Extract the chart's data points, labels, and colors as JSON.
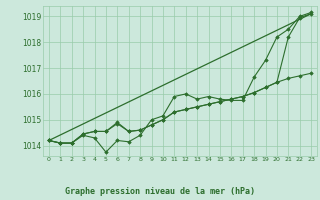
{
  "title": "Graphe pression niveau de la mer (hPa)",
  "bg_color": "#cce8dc",
  "grid_color": "#99ccaa",
  "line_color": "#2d6e2d",
  "marker_color": "#2d6e2d",
  "ylim": [
    1013.6,
    1019.4
  ],
  "xlim": [
    -0.5,
    23.5
  ],
  "yticks": [
    1014,
    1015,
    1016,
    1017,
    1018,
    1019
  ],
  "xticks": [
    0,
    1,
    2,
    3,
    4,
    5,
    6,
    7,
    8,
    9,
    10,
    11,
    12,
    13,
    14,
    15,
    16,
    17,
    18,
    19,
    20,
    21,
    22,
    23
  ],
  "series1": [
    1014.2,
    1014.1,
    1014.1,
    1014.4,
    1014.3,
    1013.75,
    1014.2,
    1014.15,
    1014.4,
    1015.0,
    1015.15,
    1015.9,
    1016.0,
    1015.8,
    1015.9,
    1015.8,
    1015.75,
    1015.75,
    1016.65,
    1017.3,
    1018.2,
    1018.5,
    1019.0,
    1019.15
  ],
  "series2": [
    1014.2,
    1014.1,
    1014.1,
    1014.45,
    1014.55,
    1014.55,
    1014.85,
    1014.55,
    1014.6,
    1014.8,
    1015.0,
    1015.3,
    1015.4,
    1015.5,
    1015.6,
    1015.7,
    1015.8,
    1015.9,
    1016.05,
    1016.25,
    1016.45,
    1016.6,
    1016.7,
    1016.8
  ],
  "series3": [
    1014.2,
    1014.1,
    1014.1,
    1014.45,
    1014.55,
    1014.55,
    1014.9,
    1014.55,
    1014.6,
    1014.8,
    1015.0,
    1015.3,
    1015.4,
    1015.5,
    1015.6,
    1015.7,
    1015.8,
    1015.9,
    1016.05,
    1016.25,
    1016.45,
    1018.2,
    1018.95,
    1019.1
  ],
  "trend_y": [
    1014.2,
    1019.1
  ],
  "trend_x": [
    0,
    23
  ]
}
